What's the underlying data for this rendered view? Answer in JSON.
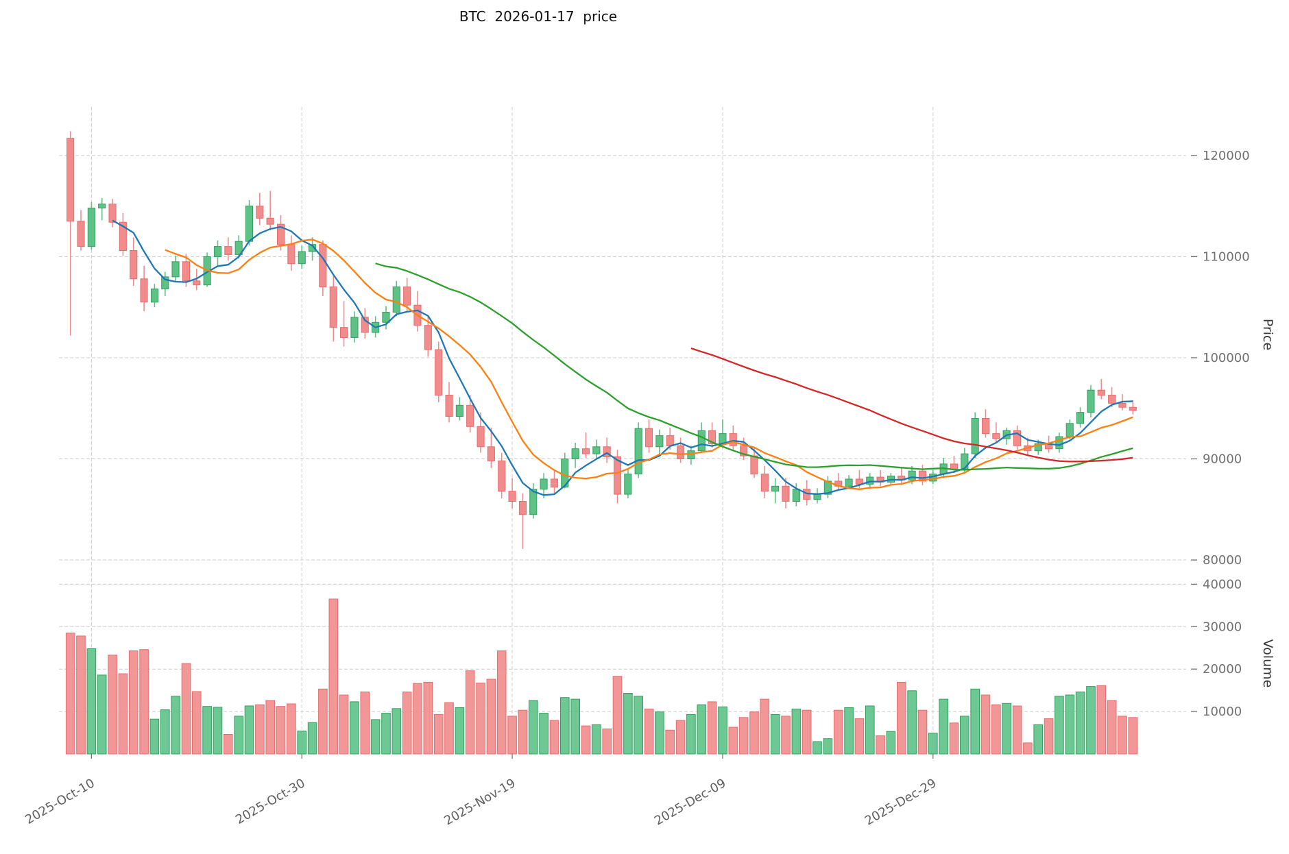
{
  "chart_data": {
    "type": "candlestick",
    "title": "BTC  2026-01-17  price",
    "xlabel": "",
    "ylabel": "Price",
    "ylabel_volume": "Volume",
    "legend": "none",
    "grid": "dashed",
    "price_ylim": [
      79800,
      124800
    ],
    "volume_ylim": [
      0,
      42000
    ],
    "price_ticks": [
      120000,
      110000,
      100000,
      90000,
      80000
    ],
    "price_tick_labels": [
      "120000",
      "110000",
      "100000",
      "90000",
      "80000"
    ],
    "volume_ticks": [
      40000,
      30000,
      20000,
      10000
    ],
    "volume_tick_labels": [
      "40000",
      "30000",
      "20000",
      "10000"
    ],
    "x_ticks": [
      {
        "index": 2,
        "label": "2025-Oct-10"
      },
      {
        "index": 22,
        "label": "2025-Oct-30"
      },
      {
        "index": 42,
        "label": "2025-Nov-19"
      },
      {
        "index": 62,
        "label": "2025-Dec-09"
      },
      {
        "index": 82,
        "label": "2025-Dec-29"
      }
    ],
    "mav": {
      "windows": [
        5,
        10,
        30,
        60
      ],
      "colors": [
        "#1f77b4",
        "#ff7f0e",
        "#2ca02c",
        "#d62728"
      ]
    },
    "colors": {
      "up": "#5ec287",
      "up_edge": "#31a05f",
      "down": "#f08c8c",
      "down_edge": "#e96b6b",
      "grid": "#cccccc",
      "tick_text": "#707070"
    },
    "columns": [
      "date",
      "open",
      "high",
      "low",
      "close",
      "volume"
    ],
    "candles": [
      [
        "2025-10-08",
        121700,
        122400,
        102200,
        113500,
        28500
      ],
      [
        "2025-10-09",
        113500,
        114600,
        110600,
        111000,
        27800
      ],
      [
        "2025-10-10",
        111000,
        115400,
        110700,
        114800,
        24800
      ],
      [
        "2025-10-11",
        114800,
        115800,
        113600,
        115200,
        18600
      ],
      [
        "2025-10-12",
        115200,
        115700,
        112900,
        113400,
        23300
      ],
      [
        "2025-10-13",
        113400,
        114300,
        110100,
        110600,
        18900
      ],
      [
        "2025-10-14",
        110600,
        111900,
        107100,
        107800,
        24300
      ],
      [
        "2025-10-15",
        107800,
        109100,
        104600,
        105500,
        24600
      ],
      [
        "2025-10-16",
        105500,
        107300,
        105000,
        106800,
        8200
      ],
      [
        "2025-10-17",
        106800,
        108500,
        106100,
        108000,
        10400
      ],
      [
        "2025-10-18",
        108000,
        110100,
        107500,
        109500,
        13600
      ],
      [
        "2025-10-19",
        109500,
        110300,
        107000,
        107600,
        21300
      ],
      [
        "2025-10-20",
        107600,
        108800,
        106700,
        107200,
        14700
      ],
      [
        "2025-10-21",
        107200,
        110400,
        107000,
        110000,
        11200
      ],
      [
        "2025-10-22",
        110000,
        111600,
        109100,
        111000,
        11000
      ],
      [
        "2025-10-23",
        111000,
        111900,
        109600,
        110200,
        4600
      ],
      [
        "2025-10-24",
        110200,
        112100,
        109800,
        111500,
        8900
      ],
      [
        "2025-10-25",
        111500,
        115600,
        111100,
        115000,
        11300
      ],
      [
        "2025-10-26",
        115000,
        116300,
        113100,
        113800,
        11600
      ],
      [
        "2025-10-27",
        113800,
        116500,
        112600,
        113200,
        12600
      ],
      [
        "2025-10-28",
        113200,
        114100,
        110600,
        111200,
        11200
      ],
      [
        "2025-10-29",
        111200,
        112100,
        108600,
        109300,
        11800
      ],
      [
        "2025-10-30",
        109300,
        111100,
        108800,
        110500,
        5400
      ],
      [
        "2025-10-31",
        110500,
        111900,
        109600,
        111200,
        7400
      ],
      [
        "2025-11-01",
        111200,
        111600,
        106100,
        107000,
        15300
      ],
      [
        "2025-11-02",
        107000,
        108100,
        101600,
        103000,
        36500
      ],
      [
        "2025-11-03",
        103000,
        105600,
        101100,
        102000,
        13900
      ],
      [
        "2025-11-04",
        102000,
        104600,
        101500,
        104000,
        12300
      ],
      [
        "2025-11-05",
        104000,
        104900,
        101900,
        102500,
        14600
      ],
      [
        "2025-11-06",
        102500,
        104100,
        102000,
        103500,
        8100
      ],
      [
        "2025-11-07",
        103500,
        105100,
        102800,
        104500,
        9600
      ],
      [
        "2025-11-08",
        104500,
        107600,
        104100,
        107000,
        10700
      ],
      [
        "2025-11-09",
        107000,
        107900,
        104600,
        105200,
        14600
      ],
      [
        "2025-11-10",
        105200,
        106600,
        102600,
        103200,
        16600
      ],
      [
        "2025-11-11",
        103200,
        104100,
        100100,
        100800,
        16900
      ],
      [
        "2025-11-12",
        100800,
        101600,
        95600,
        96300,
        9300
      ],
      [
        "2025-11-13",
        96300,
        97600,
        93600,
        94200,
        12100
      ],
      [
        "2025-11-14",
        94200,
        96100,
        93800,
        95300,
        10900
      ],
      [
        "2025-11-15",
        95300,
        96300,
        92600,
        93200,
        19600
      ],
      [
        "2025-11-16",
        93200,
        94600,
        90600,
        91200,
        16700
      ],
      [
        "2025-11-17",
        91200,
        93100,
        89100,
        89800,
        17600
      ],
      [
        "2025-11-18",
        89800,
        90600,
        86100,
        86800,
        24300
      ],
      [
        "2025-11-19",
        86800,
        88100,
        85100,
        85800,
        8900
      ],
      [
        "2025-11-20",
        85800,
        86600,
        81100,
        84500,
        10300
      ],
      [
        "2025-11-21",
        84500,
        87600,
        84100,
        87000,
        12600
      ],
      [
        "2025-11-22",
        87000,
        88600,
        86100,
        88000,
        9600
      ],
      [
        "2025-11-23",
        88000,
        88900,
        86600,
        87200,
        7900
      ],
      [
        "2025-11-24",
        87200,
        90600,
        87100,
        90000,
        13300
      ],
      [
        "2025-11-25",
        90000,
        91600,
        89100,
        91000,
        12900
      ],
      [
        "2025-11-26",
        91000,
        92600,
        90100,
        90500,
        6600
      ],
      [
        "2025-11-27",
        90500,
        91900,
        89900,
        91200,
        6900
      ],
      [
        "2025-11-28",
        91200,
        92100,
        89600,
        90200,
        5900
      ],
      [
        "2025-11-29",
        90200,
        90900,
        85600,
        86500,
        18300
      ],
      [
        "2025-11-30",
        86500,
        89100,
        86100,
        88500,
        14300
      ],
      [
        "2025-12-01",
        88500,
        93600,
        88100,
        93000,
        13600
      ],
      [
        "2025-12-02",
        93000,
        93900,
        90600,
        91200,
        10600
      ],
      [
        "2025-12-03",
        91200,
        92900,
        90300,
        92300,
        9900
      ],
      [
        "2025-12-04",
        92300,
        93100,
        90900,
        91300,
        5600
      ],
      [
        "2025-12-05",
        91300,
        92100,
        89600,
        90000,
        7900
      ],
      [
        "2025-12-06",
        90000,
        91300,
        89400,
        90800,
        9300
      ],
      [
        "2025-12-07",
        90800,
        93600,
        90600,
        92800,
        11600
      ],
      [
        "2025-12-08",
        92800,
        93600,
        91100,
        91500,
        12300
      ],
      [
        "2025-12-09",
        91500,
        93900,
        91100,
        92500,
        11100
      ],
      [
        "2025-12-10",
        92500,
        93300,
        90900,
        91300,
        6300
      ],
      [
        "2025-12-11",
        91300,
        92100,
        89900,
        90300,
        8600
      ],
      [
        "2025-12-12",
        90300,
        91100,
        88100,
        88500,
        9900
      ],
      [
        "2025-12-13",
        88500,
        89300,
        86100,
        86800,
        12900
      ],
      [
        "2025-12-14",
        86800,
        88100,
        85600,
        87300,
        9300
      ],
      [
        "2025-12-15",
        87300,
        88100,
        85100,
        85800,
        8900
      ],
      [
        "2025-12-16",
        85800,
        87600,
        85300,
        87000,
        10600
      ],
      [
        "2025-12-17",
        87000,
        87900,
        85400,
        86000,
        10300
      ],
      [
        "2025-12-18",
        86000,
        87100,
        85600,
        86500,
        2900
      ],
      [
        "2025-12-19",
        86500,
        88300,
        86100,
        87800,
        3600
      ],
      [
        "2025-12-20",
        87800,
        88600,
        86900,
        87300,
        10300
      ],
      [
        "2025-12-21",
        87300,
        88400,
        87000,
        88000,
        10900
      ],
      [
        "2025-12-22",
        88000,
        88900,
        87100,
        87500,
        8300
      ],
      [
        "2025-12-23",
        87500,
        88600,
        87100,
        88200,
        11300
      ],
      [
        "2025-12-24",
        88200,
        88900,
        87300,
        87700,
        4300
      ],
      [
        "2025-12-25",
        87700,
        88600,
        87400,
        88300,
        5300
      ],
      [
        "2025-12-26",
        88300,
        89100,
        87600,
        87900,
        16900
      ],
      [
        "2025-12-27",
        87900,
        89300,
        87500,
        88800,
        14900
      ],
      [
        "2025-12-28",
        88800,
        89400,
        87400,
        87800,
        10300
      ],
      [
        "2025-12-29",
        87800,
        88900,
        87500,
        88500,
        4900
      ],
      [
        "2025-12-30",
        88500,
        90100,
        88100,
        89500,
        12900
      ],
      [
        "2025-12-31",
        89500,
        90300,
        88600,
        89000,
        7300
      ],
      [
        "2026-01-01",
        89000,
        91100,
        88700,
        90500,
        8900
      ],
      [
        "2026-01-02",
        90500,
        94600,
        90100,
        94000,
        15300
      ],
      [
        "2026-01-03",
        94000,
        94900,
        92100,
        92500,
        13900
      ],
      [
        "2026-01-04",
        92500,
        93600,
        91600,
        92000,
        11600
      ],
      [
        "2026-01-05",
        92000,
        93100,
        91400,
        92800,
        11900
      ],
      [
        "2026-01-06",
        92800,
        93300,
        90900,
        91300,
        11300
      ],
      [
        "2026-01-07",
        91300,
        92100,
        90400,
        90800,
        2600
      ],
      [
        "2026-01-08",
        90800,
        91900,
        90400,
        91500,
        6900
      ],
      [
        "2026-01-09",
        91500,
        92300,
        90600,
        91000,
        8300
      ],
      [
        "2026-01-10",
        91000,
        92600,
        90600,
        92200,
        13600
      ],
      [
        "2026-01-11",
        92200,
        93900,
        91900,
        93500,
        13900
      ],
      [
        "2026-01-12",
        93500,
        95100,
        93100,
        94600,
        14600
      ],
      [
        "2026-01-13",
        94600,
        97300,
        94100,
        96800,
        15900
      ],
      [
        "2026-01-14",
        96800,
        97900,
        95900,
        96300,
        16100
      ],
      [
        "2026-01-15",
        96300,
        97100,
        95100,
        95500,
        12600
      ],
      [
        "2026-01-16",
        95500,
        96400,
        94800,
        95100,
        8900
      ],
      [
        "2026-01-17",
        95100,
        95800,
        94400,
        94800,
        8600
      ]
    ]
  }
}
